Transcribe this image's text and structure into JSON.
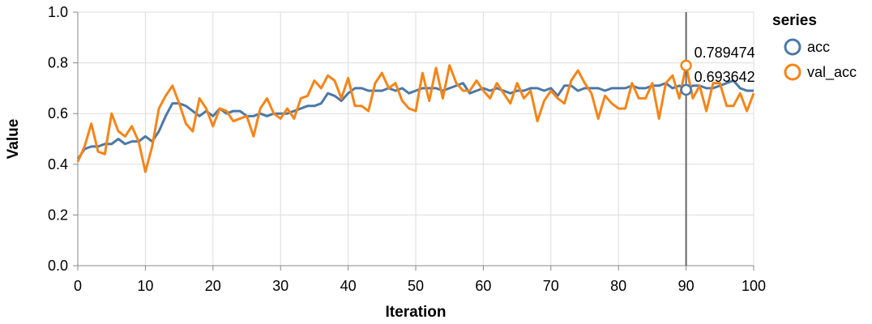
{
  "chart_data": {
    "type": "line",
    "xlabel": "Iteration",
    "ylabel": "Value",
    "xlim": [
      0,
      100
    ],
    "ylim": [
      0,
      1
    ],
    "x_ticks": [
      0,
      10,
      20,
      30,
      40,
      50,
      60,
      70,
      80,
      90,
      100
    ],
    "y_ticks": [
      0.0,
      0.2,
      0.4,
      0.6,
      0.8,
      1.0
    ],
    "grid": true,
    "legend": {
      "title": "series",
      "position": "right"
    },
    "series": [
      {
        "name": "acc",
        "color": "#4c78a8",
        "values": [
          0.42,
          0.46,
          0.47,
          0.47,
          0.48,
          0.48,
          0.5,
          0.48,
          0.49,
          0.49,
          0.51,
          0.49,
          0.53,
          0.59,
          0.64,
          0.64,
          0.63,
          0.61,
          0.59,
          0.61,
          0.59,
          0.62,
          0.6,
          0.61,
          0.61,
          0.59,
          0.59,
          0.6,
          0.59,
          0.6,
          0.6,
          0.6,
          0.61,
          0.62,
          0.63,
          0.63,
          0.64,
          0.68,
          0.67,
          0.65,
          0.68,
          0.7,
          0.7,
          0.69,
          0.69,
          0.69,
          0.7,
          0.69,
          0.7,
          0.68,
          0.69,
          0.7,
          0.7,
          0.7,
          0.69,
          0.7,
          0.71,
          0.72,
          0.68,
          0.69,
          0.7,
          0.69,
          0.7,
          0.69,
          0.68,
          0.69,
          0.69,
          0.7,
          0.7,
          0.69,
          0.7,
          0.67,
          0.71,
          0.71,
          0.69,
          0.7,
          0.7,
          0.7,
          0.69,
          0.7,
          0.7,
          0.7,
          0.71,
          0.7,
          0.7,
          0.71,
          0.71,
          0.72,
          0.7,
          0.71,
          0.693642,
          0.71,
          0.71,
          0.7,
          0.7,
          0.71,
          0.72,
          0.73,
          0.7,
          0.69,
          0.69
        ]
      },
      {
        "name": "val_acc",
        "color": "#f58518",
        "values": [
          0.41,
          0.47,
          0.56,
          0.45,
          0.44,
          0.6,
          0.53,
          0.51,
          0.55,
          0.49,
          0.37,
          0.47,
          0.62,
          0.67,
          0.71,
          0.64,
          0.56,
          0.53,
          0.66,
          0.62,
          0.55,
          0.62,
          0.61,
          0.57,
          0.58,
          0.59,
          0.51,
          0.62,
          0.66,
          0.6,
          0.58,
          0.62,
          0.58,
          0.66,
          0.67,
          0.73,
          0.7,
          0.75,
          0.73,
          0.66,
          0.74,
          0.63,
          0.63,
          0.61,
          0.72,
          0.76,
          0.7,
          0.72,
          0.65,
          0.62,
          0.61,
          0.76,
          0.65,
          0.78,
          0.66,
          0.79,
          0.72,
          0.69,
          0.69,
          0.73,
          0.69,
          0.66,
          0.72,
          0.68,
          0.64,
          0.72,
          0.66,
          0.69,
          0.57,
          0.65,
          0.69,
          0.66,
          0.64,
          0.73,
          0.77,
          0.72,
          0.68,
          0.58,
          0.67,
          0.64,
          0.62,
          0.62,
          0.72,
          0.66,
          0.66,
          0.72,
          0.58,
          0.72,
          0.75,
          0.66,
          0.789474,
          0.66,
          0.71,
          0.61,
          0.72,
          0.72,
          0.63,
          0.63,
          0.68,
          0.61,
          0.68
        ]
      }
    ],
    "hover": {
      "x": 90,
      "labels": [
        "0.789474",
        "0.693642"
      ]
    }
  }
}
